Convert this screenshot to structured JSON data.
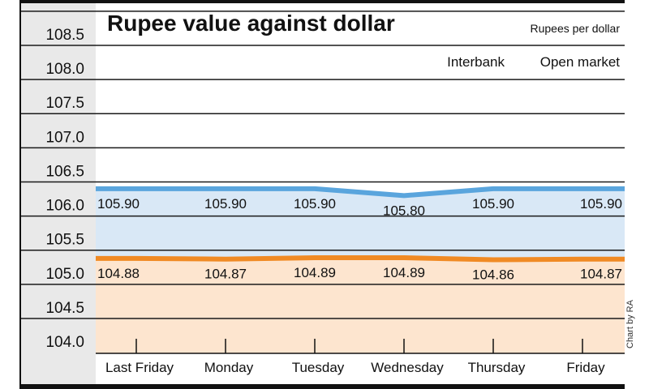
{
  "chart_data": {
    "type": "line",
    "title": "Rupee value against dollar",
    "unit_label": "Rupees per dollar",
    "credit": "Chart by RA",
    "categories": [
      "Last Friday",
      "Monday",
      "Tuesday",
      "Wednesday",
      "Thursday",
      "Friday"
    ],
    "yticks": [
      "104.0",
      "104.5",
      "105.0",
      "105.5",
      "106.0",
      "106.5",
      "107.0",
      "107.5",
      "108.0",
      "108.5"
    ],
    "ylim": [
      104.0,
      108.5
    ],
    "grid": true,
    "legend_placement": "top-right",
    "series": [
      {
        "name": "Interbank",
        "values": [
          104.88,
          104.87,
          104.89,
          104.89,
          104.86,
          104.87
        ],
        "labels": [
          "104.88",
          "104.87",
          "104.89",
          "104.89",
          "104.86",
          "104.87"
        ],
        "color": "#f08a24",
        "fill": "#fde5cf"
      },
      {
        "name": "Open market",
        "values": [
          105.9,
          105.9,
          105.9,
          105.8,
          105.9,
          105.9
        ],
        "labels": [
          "105.90",
          "105.90",
          "105.90",
          "105.80",
          "105.90",
          "105.90"
        ],
        "color": "#5aa5dd",
        "fill": "#d9e8f6"
      }
    ]
  }
}
